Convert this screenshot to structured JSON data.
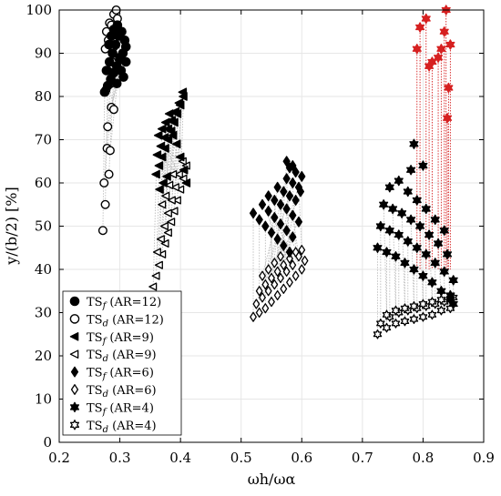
{
  "chart_data": {
    "type": "scatter",
    "title": "",
    "xlabel": "ωh/ωα",
    "ylabel": "y/(b/2) [%]",
    "xlim": [
      0.2,
      0.9
    ],
    "ylim": [
      0,
      100
    ],
    "xticks": [
      "0.2",
      "0.3",
      "0.4",
      "0.5",
      "0.6",
      "0.7",
      "0.8",
      "0.9"
    ],
    "yticks": [
      "0",
      "10",
      "20",
      "30",
      "40",
      "50",
      "60",
      "70",
      "80",
      "90",
      "100"
    ],
    "grid": true,
    "legend_position": "bottom-left",
    "colors": {
      "filled": "#000000",
      "open_edge": "#000000",
      "red_highlight": "#d62020",
      "connector": "#bdbdbd"
    },
    "groups": [
      {
        "ar": "12",
        "marker": "circle",
        "flutter": {
          "name": "TS_f (AR=12)",
          "points": [
            [
              0.275,
              81.0
            ],
            [
              0.28,
              82.5
            ],
            [
              0.285,
              84.0
            ],
            [
              0.29,
              85.5
            ],
            [
              0.295,
              87.0
            ],
            [
              0.3,
              88.5
            ],
            [
              0.305,
              90.0
            ],
            [
              0.31,
              91.5
            ],
            [
              0.278,
              86.0
            ],
            [
              0.283,
              88.0
            ],
            [
              0.288,
              90.0
            ],
            [
              0.293,
              92.0
            ],
            [
              0.298,
              94.0
            ],
            [
              0.303,
              95.0
            ],
            [
              0.308,
              93.0
            ],
            [
              0.282,
              92.0
            ],
            [
              0.286,
              94.0
            ],
            [
              0.29,
              95.5
            ],
            [
              0.296,
              96.5
            ],
            [
              0.3,
              89.0
            ],
            [
              0.295,
              83.0
            ],
            [
              0.302,
              86.0
            ],
            [
              0.306,
              84.5
            ],
            [
              0.31,
              88.0
            ]
          ]
        },
        "divergence": {
          "name": "TS_d (AR=12)",
          "points": [
            [
              0.272,
              49.0
            ],
            [
              0.276,
              55.0
            ],
            [
              0.274,
              60.0
            ],
            [
              0.282,
              62.0
            ],
            [
              0.279,
              68.0
            ],
            [
              0.284,
              67.5
            ],
            [
              0.28,
              73.0
            ],
            [
              0.286,
              77.5
            ],
            [
              0.29,
              77.0
            ],
            [
              0.277,
              81.5
            ],
            [
              0.285,
              83.0
            ],
            [
              0.28,
              86.0
            ],
            [
              0.287,
              88.0
            ],
            [
              0.276,
              91.0
            ],
            [
              0.281,
              93.0
            ],
            [
              0.29,
              91.5
            ],
            [
              0.278,
              95.0
            ],
            [
              0.283,
              97.0
            ],
            [
              0.29,
              99.0
            ],
            [
              0.296,
              98.0
            ],
            [
              0.286,
              96.5
            ],
            [
              0.294,
              100.0
            ]
          ]
        }
      },
      {
        "ar": "9",
        "marker": "triangle-left",
        "flutter": {
          "name": "TS_f (AR=9)",
          "points": [
            [
              0.36,
              62.0
            ],
            [
              0.365,
              64.0
            ],
            [
              0.37,
              66.0
            ],
            [
              0.375,
              68.0
            ],
            [
              0.38,
              70.0
            ],
            [
              0.385,
              72.0
            ],
            [
              0.39,
              74.0
            ],
            [
              0.395,
              76.0
            ],
            [
              0.4,
              78.0
            ],
            [
              0.405,
              80.0
            ],
            [
              0.362,
              66.5
            ],
            [
              0.368,
              68.5
            ],
            [
              0.374,
              70.5
            ],
            [
              0.38,
              72.5
            ],
            [
              0.386,
              74.5
            ],
            [
              0.392,
              76.5
            ],
            [
              0.398,
              78.5
            ],
            [
              0.404,
              81.0
            ],
            [
              0.364,
              71.0
            ],
            [
              0.37,
              72.5
            ],
            [
              0.376,
              74.0
            ],
            [
              0.382,
              76.0
            ],
            [
              0.388,
              71.0
            ],
            [
              0.394,
              69.0
            ],
            [
              0.4,
              66.0
            ],
            [
              0.406,
              63.0
            ],
            [
              0.41,
              60.0
            ],
            [
              0.366,
              58.5
            ],
            [
              0.372,
              60.0
            ],
            [
              0.378,
              61.5
            ]
          ]
        },
        "divergence": {
          "name": "TS_d (AR=9)",
          "points": [
            [
              0.355,
              36.0
            ],
            [
              0.36,
              38.5
            ],
            [
              0.365,
              41.0
            ],
            [
              0.37,
              43.5
            ],
            [
              0.375,
              46.0
            ],
            [
              0.38,
              48.5
            ],
            [
              0.385,
              51.0
            ],
            [
              0.39,
              53.5
            ],
            [
              0.395,
              56.0
            ],
            [
              0.4,
              58.5
            ],
            [
              0.405,
              61.0
            ],
            [
              0.41,
              64.0
            ],
            [
              0.362,
              44.0
            ],
            [
              0.368,
              47.0
            ],
            [
              0.374,
              50.0
            ],
            [
              0.38,
              53.0
            ],
            [
              0.386,
              56.0
            ],
            [
              0.392,
              59.0
            ],
            [
              0.398,
              62.0
            ],
            [
              0.404,
              65.0
            ],
            [
              0.37,
              55.0
            ],
            [
              0.376,
              57.0
            ],
            [
              0.382,
              59.5
            ],
            [
              0.388,
              62.0
            ]
          ]
        }
      },
      {
        "ar": "6",
        "marker": "diamond",
        "flutter": {
          "name": "TS_f (AR=6)",
          "points": [
            [
              0.52,
              53.0
            ],
            [
              0.53,
              51.5
            ],
            [
              0.54,
              50.0
            ],
            [
              0.55,
              48.5
            ],
            [
              0.56,
              47.0
            ],
            [
              0.57,
              45.5
            ],
            [
              0.58,
              44.0
            ],
            [
              0.535,
              55.0
            ],
            [
              0.545,
              53.5
            ],
            [
              0.555,
              52.0
            ],
            [
              0.565,
              50.5
            ],
            [
              0.575,
              49.0
            ],
            [
              0.585,
              47.5
            ],
            [
              0.545,
              57.0
            ],
            [
              0.555,
              56.0
            ],
            [
              0.565,
              55.0
            ],
            [
              0.575,
              54.0
            ],
            [
              0.585,
              52.5
            ],
            [
              0.595,
              51.0
            ],
            [
              0.56,
              59.0
            ],
            [
              0.57,
              58.0
            ],
            [
              0.58,
              57.0
            ],
            [
              0.59,
              56.0
            ],
            [
              0.575,
              61.0
            ],
            [
              0.585,
              60.0
            ],
            [
              0.595,
              59.0
            ],
            [
              0.58,
              63.5
            ],
            [
              0.59,
              62.5
            ],
            [
              0.6,
              61.5
            ],
            [
              0.575,
              65.0
            ],
            [
              0.585,
              64.0
            ],
            [
              0.598,
              58.0
            ]
          ]
        },
        "divergence": {
          "name": "TS_d (AR=6)",
          "points": [
            [
              0.52,
              29.0
            ],
            [
              0.53,
              30.0
            ],
            [
              0.54,
              31.0
            ],
            [
              0.55,
              32.5
            ],
            [
              0.56,
              34.0
            ],
            [
              0.57,
              35.5
            ],
            [
              0.58,
              37.0
            ],
            [
              0.59,
              38.5
            ],
            [
              0.6,
              40.0
            ],
            [
              0.605,
              42.0
            ],
            [
              0.525,
              32.0
            ],
            [
              0.535,
              33.5
            ],
            [
              0.545,
              35.0
            ],
            [
              0.555,
              36.5
            ],
            [
              0.565,
              38.0
            ],
            [
              0.575,
              39.5
            ],
            [
              0.585,
              41.0
            ],
            [
              0.595,
              43.0
            ],
            [
              0.53,
              35.0
            ],
            [
              0.54,
              36.5
            ],
            [
              0.55,
              38.0
            ],
            [
              0.56,
              39.5
            ],
            [
              0.57,
              41.0
            ],
            [
              0.58,
              42.5
            ],
            [
              0.59,
              44.0
            ],
            [
              0.6,
              44.5
            ],
            [
              0.535,
              38.5
            ],
            [
              0.545,
              40.0
            ],
            [
              0.555,
              41.5
            ],
            [
              0.565,
              43.0
            ]
          ]
        }
      },
      {
        "ar": "4",
        "marker": "hexagram",
        "flutter": {
          "name": "TS_f (AR=4)",
          "points": [
            [
              0.725,
              45.0
            ],
            [
              0.74,
              44.0
            ],
            [
              0.755,
              43.0
            ],
            [
              0.77,
              41.5
            ],
            [
              0.785,
              40.0
            ],
            [
              0.8,
              38.5
            ],
            [
              0.815,
              37.0
            ],
            [
              0.83,
              35.0
            ],
            [
              0.845,
              33.0
            ],
            [
              0.73,
              50.0
            ],
            [
              0.745,
              49.0
            ],
            [
              0.76,
              48.0
            ],
            [
              0.775,
              46.5
            ],
            [
              0.79,
              45.0
            ],
            [
              0.805,
              43.5
            ],
            [
              0.82,
              41.5
            ],
            [
              0.835,
              39.5
            ],
            [
              0.85,
              37.5
            ],
            [
              0.735,
              55.0
            ],
            [
              0.75,
              54.0
            ],
            [
              0.765,
              53.0
            ],
            [
              0.78,
              51.5
            ],
            [
              0.795,
              50.0
            ],
            [
              0.81,
              48.0
            ],
            [
              0.825,
              46.0
            ],
            [
              0.84,
              43.5
            ],
            [
              0.745,
              59.0
            ],
            [
              0.76,
              60.5
            ],
            [
              0.775,
              58.0
            ],
            [
              0.79,
              56.0
            ],
            [
              0.805,
              54.0
            ],
            [
              0.82,
              51.5
            ],
            [
              0.835,
              49.0
            ],
            [
              0.78,
              63.0
            ],
            [
              0.785,
              69.0
            ],
            [
              0.8,
              64.0
            ],
            [
              0.845,
              34.0
            ],
            [
              0.85,
              32.0
            ]
          ],
          "highlight_points": [
            [
              0.79,
              91.0
            ],
            [
              0.795,
              96.0
            ],
            [
              0.805,
              98.0
            ],
            [
              0.81,
              87.0
            ],
            [
              0.815,
              88.0
            ],
            [
              0.825,
              89.0
            ],
            [
              0.83,
              91.0
            ],
            [
              0.835,
              95.0
            ],
            [
              0.838,
              100.0
            ],
            [
              0.845,
              92.0
            ],
            [
              0.842,
              82.0
            ],
            [
              0.84,
              75.0
            ]
          ]
        },
        "divergence": {
          "name": "TS_d (AR=4)",
          "points": [
            [
              0.725,
              25.0
            ],
            [
              0.74,
              26.5
            ],
            [
              0.755,
              27.5
            ],
            [
              0.77,
              28.0
            ],
            [
              0.785,
              28.5
            ],
            [
              0.8,
              29.0
            ],
            [
              0.815,
              29.5
            ],
            [
              0.83,
              30.5
            ],
            [
              0.845,
              31.0
            ],
            [
              0.73,
              27.5
            ],
            [
              0.745,
              29.0
            ],
            [
              0.76,
              30.0
            ],
            [
              0.775,
              30.5
            ],
            [
              0.79,
              31.0
            ],
            [
              0.805,
              31.5
            ],
            [
              0.82,
              32.0
            ],
            [
              0.835,
              32.5
            ],
            [
              0.85,
              33.5
            ],
            [
              0.74,
              29.5
            ],
            [
              0.755,
              30.5
            ],
            [
              0.77,
              31.0
            ],
            [
              0.785,
              31.5
            ],
            [
              0.8,
              32.0
            ],
            [
              0.815,
              32.5
            ],
            [
              0.83,
              33.0
            ],
            [
              0.845,
              33.0
            ]
          ]
        }
      }
    ],
    "legend": [
      {
        "label_main": "TS",
        "label_sub": "f",
        "label_tail": " (AR=12)",
        "marker": "circle",
        "filled": true
      },
      {
        "label_main": "TS",
        "label_sub": "d",
        "label_tail": " (AR=12)",
        "marker": "circle",
        "filled": false
      },
      {
        "label_main": "TS",
        "label_sub": "f",
        "label_tail": " (AR=9)",
        "marker": "triangle-left",
        "filled": true
      },
      {
        "label_main": "TS",
        "label_sub": "d",
        "label_tail": " (AR=9)",
        "marker": "triangle-left",
        "filled": false
      },
      {
        "label_main": "TS",
        "label_sub": "f",
        "label_tail": " (AR=6)",
        "marker": "diamond",
        "filled": true
      },
      {
        "label_main": "TS",
        "label_sub": "d",
        "label_tail": " (AR=6)",
        "marker": "diamond",
        "filled": false
      },
      {
        "label_main": "TS",
        "label_sub": "f",
        "label_tail": " (AR=4)",
        "marker": "hexagram",
        "filled": true
      },
      {
        "label_main": "TS",
        "label_sub": "d",
        "label_tail": " (AR=4)",
        "marker": "hexagram",
        "filled": false
      }
    ]
  }
}
